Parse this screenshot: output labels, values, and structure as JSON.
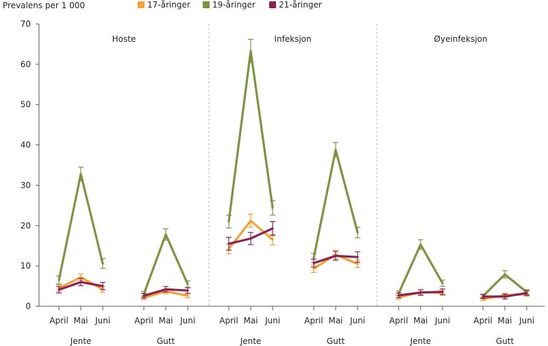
{
  "chart_data": {
    "type": "line",
    "ylabel": "Prevalens per 1 000",
    "ylim": [
      0,
      70
    ],
    "yticks": [
      0,
      10,
      20,
      30,
      40,
      50,
      60,
      70
    ],
    "months": [
      "April",
      "Mai",
      "Juni"
    ],
    "genders": [
      "Jente",
      "Gutt"
    ],
    "panels": [
      "Hoste",
      "Infeksjon",
      "Øyeinfeksjon"
    ],
    "colors": {
      "17-åringer": "#f5a030",
      "19-åringer": "#7a9440",
      "21-åringer": "#8b2252",
      "axis": "#555555",
      "divider": "#bbbbbb"
    },
    "series": [
      {
        "name": "17-åringer",
        "groups": [
          {
            "panel": "Hoste",
            "gender": "Jente",
            "values": [
              4.5,
              7.2,
              4.2
            ],
            "errors": [
              0.8,
              0.8,
              0.7
            ]
          },
          {
            "panel": "Hoste",
            "gender": "Gutt",
            "values": [
              2.1,
              3.7,
              2.6
            ],
            "errors": [
              0.5,
              0.6,
              0.5
            ]
          },
          {
            "panel": "Infeksjon",
            "gender": "Jente",
            "values": [
              14.2,
              21.2,
              16.5
            ],
            "errors": [
              1.2,
              1.6,
              1.3
            ]
          },
          {
            "panel": "Infeksjon",
            "gender": "Gutt",
            "values": [
              9.3,
              12.8,
              10.5
            ],
            "errors": [
              0.9,
              1.1,
              0.9
            ]
          },
          {
            "panel": "Øyeinfeksjon",
            "gender": "Jente",
            "values": [
              2.2,
              3.5,
              3.3
            ],
            "errors": [
              0.5,
              0.6,
              0.6
            ]
          },
          {
            "panel": "Øyeinfeksjon",
            "gender": "Gutt",
            "values": [
              1.8,
              2.7,
              3.0
            ],
            "errors": [
              0.4,
              0.5,
              0.5
            ]
          }
        ]
      },
      {
        "name": "19-åringer",
        "groups": [
          {
            "panel": "Hoste",
            "gender": "Jente",
            "values": [
              6.5,
              32.8,
              10.6
            ],
            "errors": [
              1.0,
              1.7,
              1.2
            ]
          },
          {
            "panel": "Hoste",
            "gender": "Gutt",
            "values": [
              3.0,
              17.8,
              5.5
            ],
            "errors": [
              0.7,
              1.4,
              0.8
            ]
          },
          {
            "panel": "Infeksjon",
            "gender": "Jente",
            "values": [
              21.0,
              63.3,
              24.4
            ],
            "errors": [
              1.6,
              2.9,
              1.8
            ]
          },
          {
            "panel": "Infeksjon",
            "gender": "Gutt",
            "values": [
              12.0,
              38.8,
              18.3
            ],
            "errors": [
              1.1,
              1.8,
              1.3
            ]
          },
          {
            "panel": "Øyeinfeksjon",
            "gender": "Jente",
            "values": [
              3.2,
              15.3,
              5.7
            ],
            "errors": [
              0.6,
              1.2,
              0.8
            ]
          },
          {
            "panel": "Øyeinfeksjon",
            "gender": "Gutt",
            "values": [
              2.5,
              7.9,
              3.5
            ],
            "errors": [
              0.5,
              0.9,
              0.6
            ]
          }
        ]
      },
      {
        "name": "21-åringer",
        "groups": [
          {
            "panel": "Hoste",
            "gender": "Jente",
            "values": [
              4.1,
              6.0,
              5.0
            ],
            "errors": [
              0.8,
              0.9,
              0.9
            ]
          },
          {
            "panel": "Hoste",
            "gender": "Gutt",
            "values": [
              2.6,
              4.2,
              3.9
            ],
            "errors": [
              0.6,
              0.7,
              0.7
            ]
          },
          {
            "panel": "Infeksjon",
            "gender": "Jente",
            "values": [
              15.5,
              16.8,
              19.3
            ],
            "errors": [
              1.6,
              1.5,
              1.7
            ]
          },
          {
            "panel": "Infeksjon",
            "gender": "Gutt",
            "values": [
              10.7,
              12.5,
              12.2
            ],
            "errors": [
              1.0,
              1.1,
              1.3
            ]
          },
          {
            "panel": "Øyeinfeksjon",
            "gender": "Jente",
            "values": [
              2.7,
              3.4,
              3.6
            ],
            "errors": [
              0.6,
              0.7,
              0.7
            ]
          },
          {
            "panel": "Øyeinfeksjon",
            "gender": "Gutt",
            "values": [
              2.4,
              2.4,
              3.3
            ],
            "errors": [
              0.5,
              0.6,
              0.6
            ]
          }
        ]
      }
    ]
  }
}
